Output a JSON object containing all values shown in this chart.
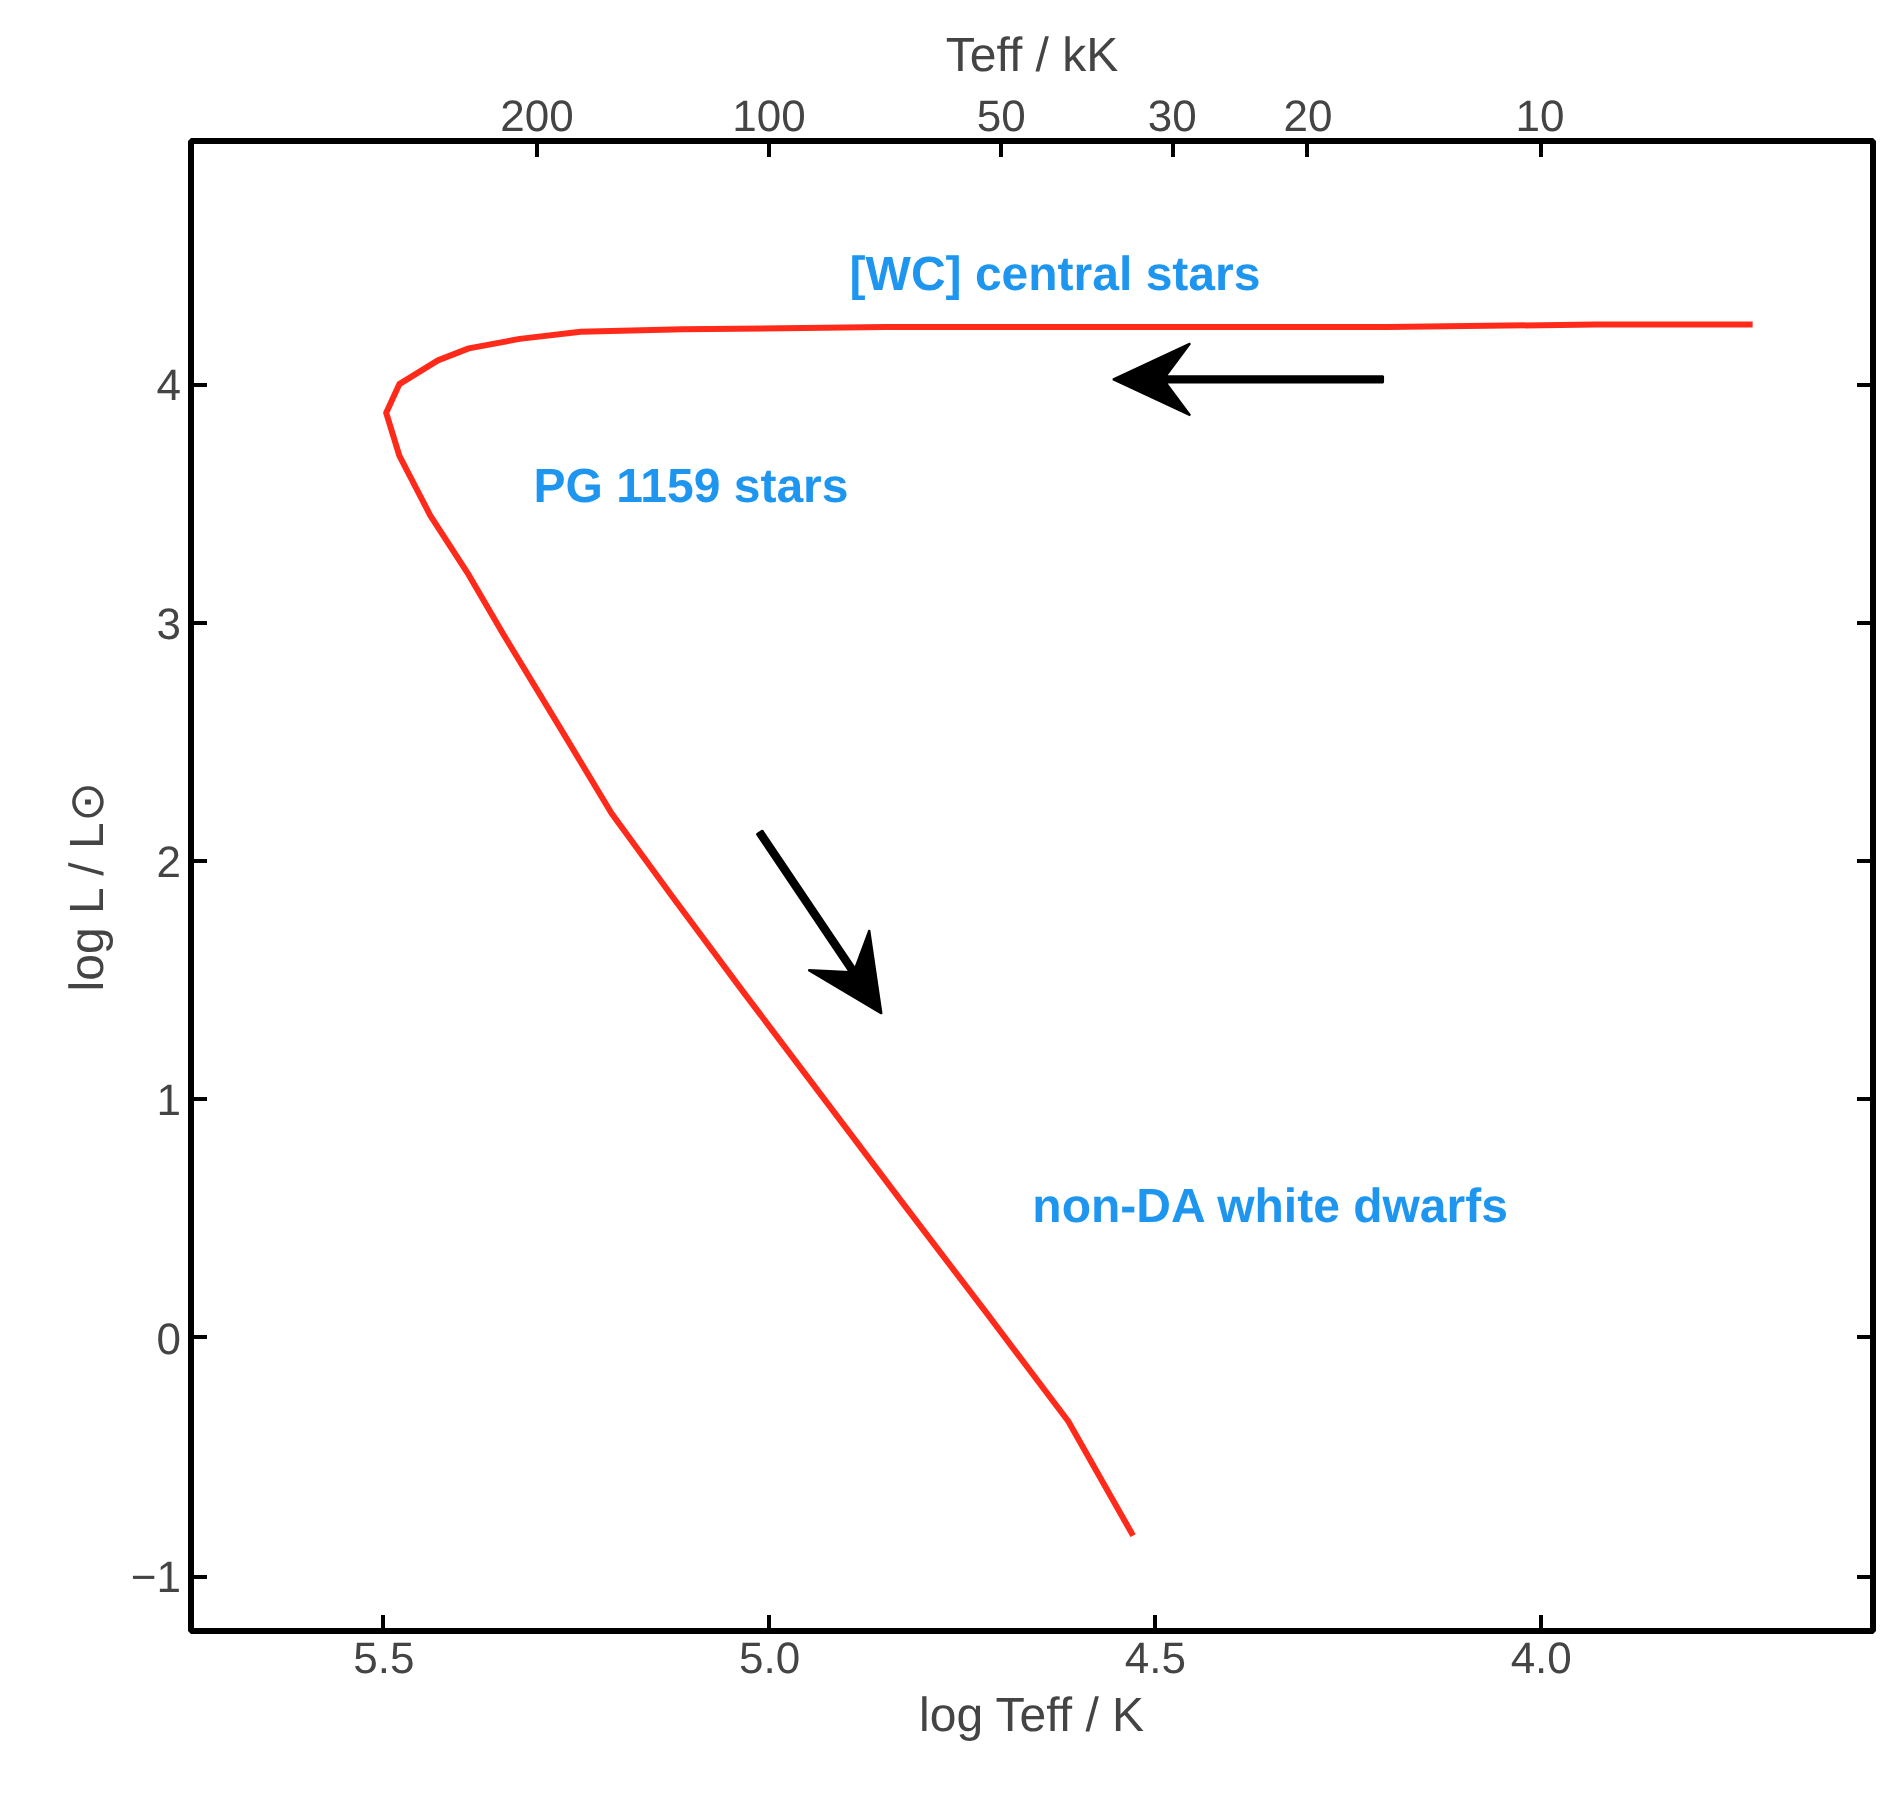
{
  "chart_data": {
    "type": "line",
    "xlabel": "log Teff / K",
    "ylabel": "log L / L⊙",
    "x2label": "Teff / kK",
    "xlim": [
      5.75,
      3.57
    ],
    "ylim": [
      -1.23,
      5.02
    ],
    "xticks": [
      5.5,
      {
        "value": 5.0,
        "label": "5.0"
      },
      4.5,
      {
        "value": 4.0,
        "label": "4.0"
      }
    ],
    "yticks": [
      -1,
      0,
      1,
      2,
      3,
      4
    ],
    "x2lim": [
      562,
      3.7
    ],
    "log": "x2",
    "x2ticks": [
      200,
      100,
      50,
      30,
      20,
      10
    ],
    "grid": false,
    "marker": "none",
    "line_style": "solid",
    "series": [
      {
        "color": "#ff2a1a",
        "x": [
          3.726,
          3.93,
          4.2,
          4.455,
          4.85,
          5.113,
          5.245,
          5.324,
          5.39,
          5.43,
          5.48,
          5.497,
          5.48,
          5.44,
          5.39,
          5.345,
          5.27,
          5.205,
          5.126,
          5.034,
          4.929,
          4.824,
          4.718,
          4.613,
          4.529
        ],
        "values": [
          4.25,
          4.25,
          4.24,
          4.24,
          4.24,
          4.23,
          4.22,
          4.19,
          4.15,
          4.1,
          4.0,
          3.88,
          3.7,
          3.45,
          3.2,
          2.95,
          2.55,
          2.2,
          1.85,
          1.45,
          1.0,
          0.55,
          0.1,
          -0.35,
          -0.83
        ]
      }
    ],
    "annotations": [
      "[WC] central stars",
      "PG 1159 stars",
      "non-DA white dwarfs"
    ]
  }
}
